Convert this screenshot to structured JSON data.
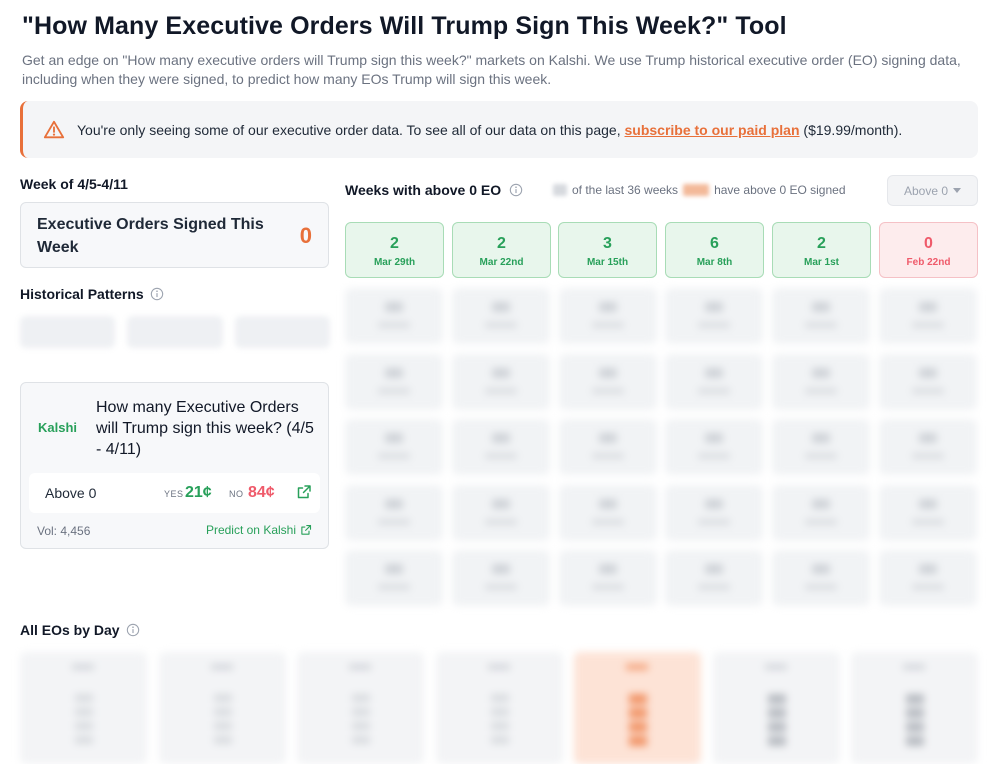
{
  "header": {
    "title": "\"How Many Executive Orders Will Trump Sign This Week?\" Tool",
    "subtitle": "Get an edge on \"How many executive orders will Trump sign this week?\" markets on Kalshi. We use Trump historical executive order (EO) signing data, including when they were signed, to predict how many EOs Trump will sign this week."
  },
  "banner": {
    "message": "You're only seeing some of our executive order data. To see all of our data on this page, ",
    "link_text": "subscribe to our paid plan",
    "suffix": " ($19.99/month).",
    "accent": "#e8703a"
  },
  "current_week": {
    "label": "Week of 4/5-4/11",
    "signed_label": "Executive Orders Signed This Week",
    "signed_value": "0"
  },
  "historical": {
    "label": "Historical Patterns"
  },
  "kalshi_market": {
    "brand": "Kalshi",
    "question": "How many Executive Orders will Trump sign this week? (4/5 - 4/11)",
    "outcome": "Above 0",
    "yes_label": "YES",
    "yes_price": "21¢",
    "no_label": "NO",
    "no_price": "84¢",
    "volume": "Vol: 4,456",
    "predict_label": "Predict on Kalshi"
  },
  "weeks_panel": {
    "title": "Weeks with above 0 EO",
    "stat_middle": "of the last 36 weeks",
    "stat_end": "have above 0 EO signed",
    "filter_value": "Above 0",
    "tiles": [
      {
        "count": "2",
        "date": "Mar 29th",
        "status": "above"
      },
      {
        "count": "2",
        "date": "Mar 22nd",
        "status": "above"
      },
      {
        "count": "3",
        "date": "Mar 15th",
        "status": "above"
      },
      {
        "count": "6",
        "date": "Mar 8th",
        "status": "above"
      },
      {
        "count": "2",
        "date": "Mar 1st",
        "status": "above"
      },
      {
        "count": "0",
        "date": "Feb 22nd",
        "status": "zero"
      }
    ]
  },
  "eos_by_day": {
    "label": "All EOs by Day"
  },
  "colors": {
    "green": "#28a05a",
    "red": "#ef5a6a",
    "orange": "#e8703a"
  }
}
